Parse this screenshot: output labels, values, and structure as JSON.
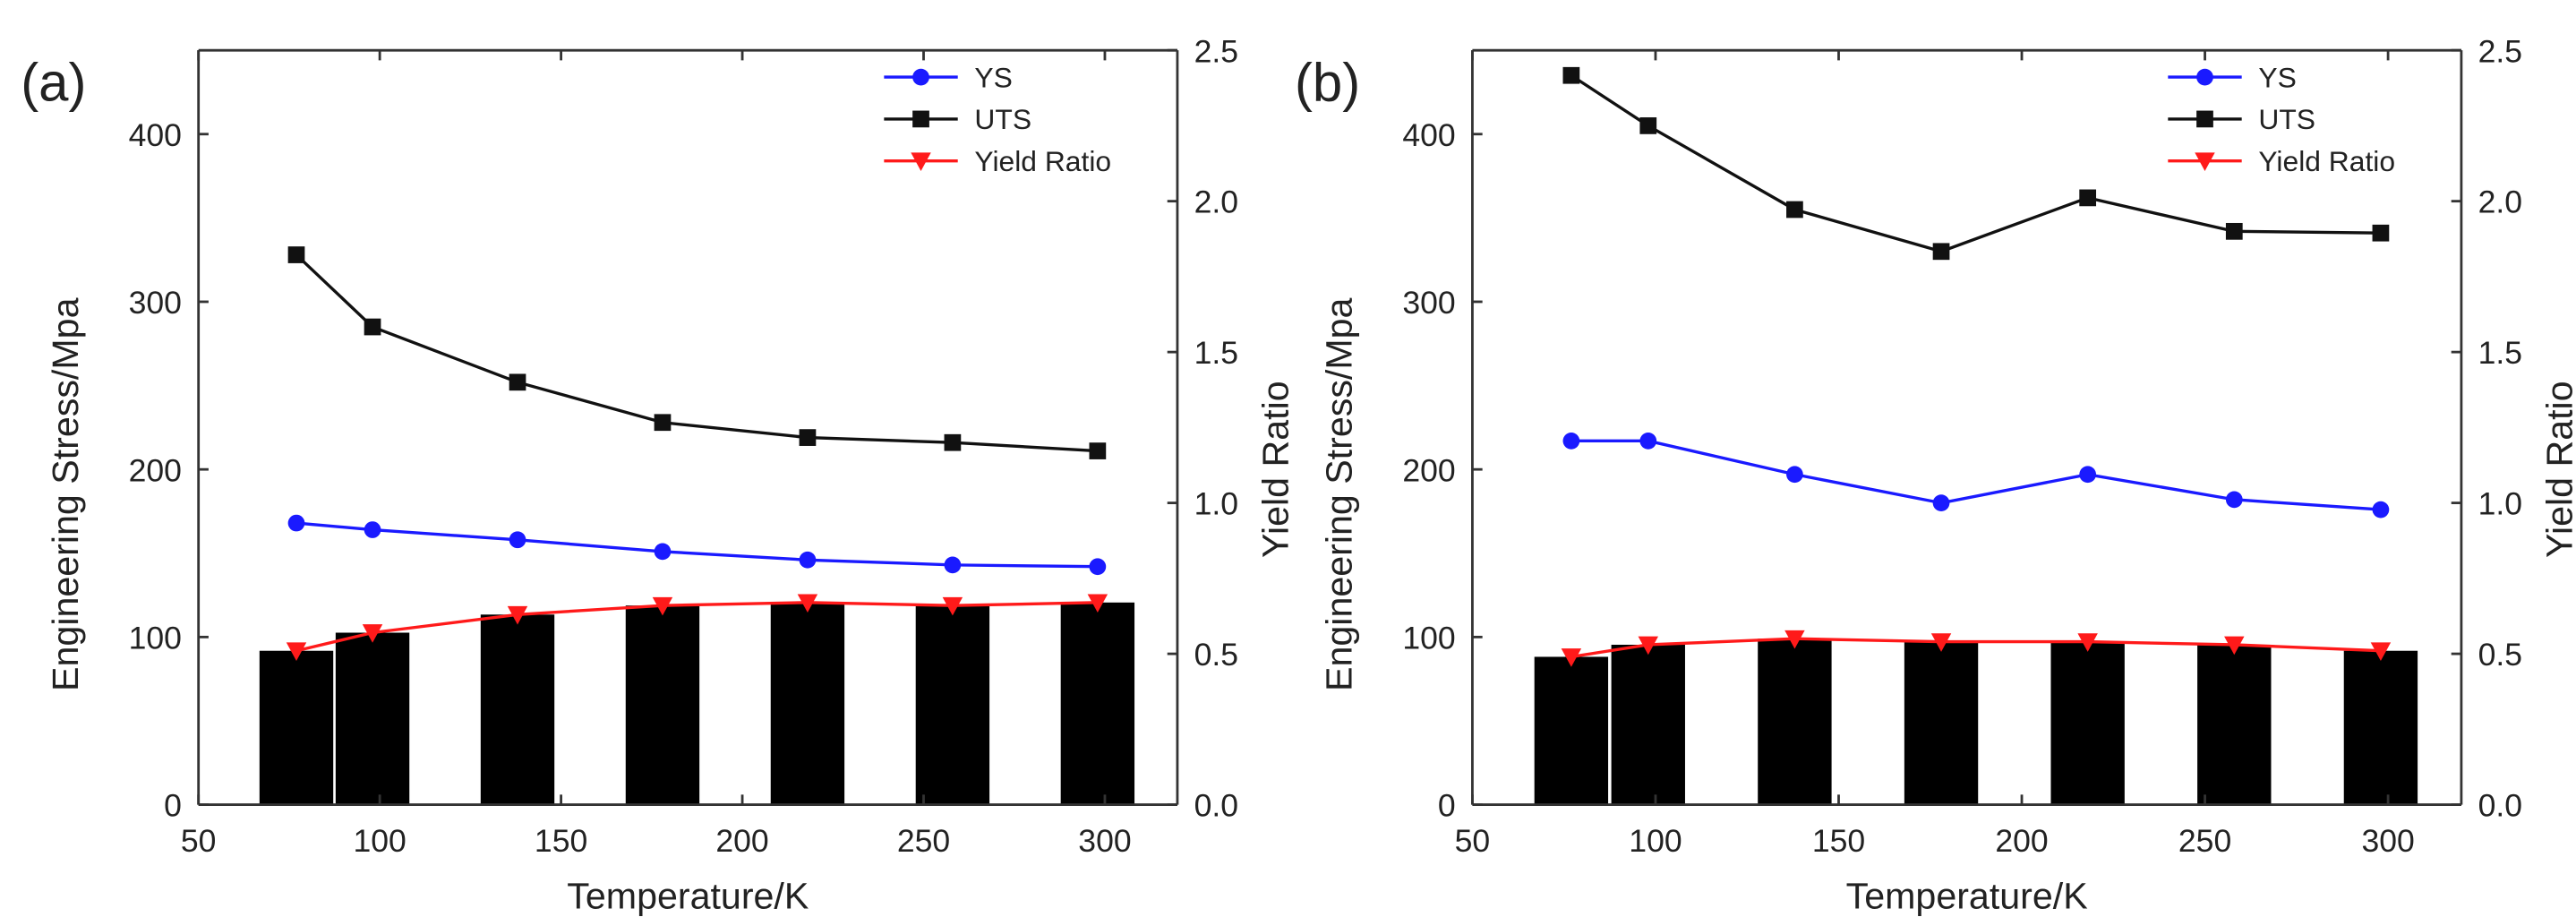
{
  "chart_data": [
    {
      "type": "line",
      "panel_label": "(a)",
      "xlabel": "Temperature/K",
      "ylabel": "Engineering Stress/Mpa",
      "y2label": "Yield Ratio",
      "xlim": [
        50,
        320
      ],
      "ylim": [
        0,
        450
      ],
      "y2lim": [
        0,
        2.5
      ],
      "xticks": [
        50,
        100,
        150,
        200,
        250,
        300
      ],
      "yticks": [
        0,
        100,
        200,
        300,
        400
      ],
      "y2ticks": [
        0.0,
        0.5,
        1.0,
        1.5,
        2.0,
        2.5
      ],
      "grid": false,
      "legend_position": "top-right",
      "x": [
        77,
        98,
        138,
        178,
        218,
        258,
        298
      ],
      "series": [
        {
          "name": "YS",
          "axis": "left",
          "marker": "circle",
          "color": "#1a1aff",
          "values": [
            168,
            164,
            158,
            151,
            146,
            143,
            142
          ]
        },
        {
          "name": "UTS",
          "axis": "left",
          "marker": "square",
          "color": "#111111",
          "values": [
            328,
            285,
            252,
            228,
            219,
            216,
            211
          ]
        },
        {
          "name": "Yield Ratio",
          "axis": "right",
          "marker": "triangle-down",
          "color": "#ff1a1a",
          "values": [
            0.51,
            0.57,
            0.63,
            0.66,
            0.67,
            0.66,
            0.67
          ]
        }
      ],
      "bars": {
        "axis": "right",
        "color": "#000000",
        "series": "Yield Ratio"
      }
    },
    {
      "type": "line",
      "panel_label": "(b)",
      "xlabel": "Temperature/K",
      "ylabel": "Engineering Stress/Mpa",
      "y2label": "Yield Ratio",
      "xlim": [
        50,
        320
      ],
      "ylim": [
        0,
        450
      ],
      "y2lim": [
        0,
        2.5
      ],
      "xticks": [
        50,
        100,
        150,
        200,
        250,
        300
      ],
      "yticks": [
        0,
        100,
        200,
        300,
        400
      ],
      "y2ticks": [
        0.0,
        0.5,
        1.0,
        1.5,
        2.0,
        2.5
      ],
      "grid": false,
      "legend_position": "top-right",
      "x": [
        77,
        98,
        138,
        178,
        218,
        258,
        298
      ],
      "series": [
        {
          "name": "YS",
          "axis": "left",
          "marker": "circle",
          "color": "#1a1aff",
          "values": [
            217,
            217,
            197,
            180,
            197,
            182,
            176
          ]
        },
        {
          "name": "UTS",
          "axis": "left",
          "marker": "square",
          "color": "#111111",
          "values": [
            435,
            405,
            355,
            330,
            362,
            342,
            341
          ]
        },
        {
          "name": "Yield Ratio",
          "axis": "right",
          "marker": "triangle-down",
          "color": "#ff1a1a",
          "values": [
            0.49,
            0.53,
            0.55,
            0.54,
            0.54,
            0.53,
            0.51
          ]
        }
      ],
      "bars": {
        "axis": "right",
        "color": "#000000",
        "series": "Yield Ratio"
      }
    }
  ]
}
